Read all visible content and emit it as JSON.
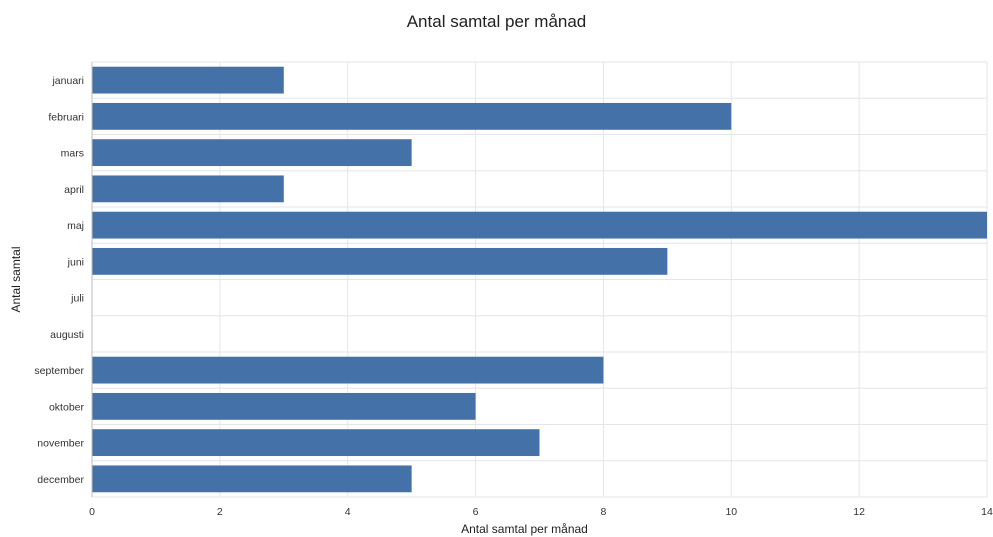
{
  "chart_data": {
    "type": "bar",
    "orientation": "horizontal",
    "title": "Antal samtal per månad",
    "xlabel": "Antal samtal per månad",
    "ylabel": "Antal samtal",
    "categories": [
      "januari",
      "februari",
      "mars",
      "april",
      "maj",
      "juni",
      "juli",
      "augusti",
      "september",
      "oktober",
      "november",
      "december"
    ],
    "values": [
      3,
      10,
      5,
      3,
      14,
      9,
      0,
      0,
      8,
      6,
      7,
      5
    ],
    "xlim": [
      0,
      14
    ],
    "xticks": [
      0,
      2,
      4,
      6,
      8,
      10,
      12,
      14
    ],
    "grid": true,
    "legend": "none",
    "bar_color": "#4472a8"
  }
}
